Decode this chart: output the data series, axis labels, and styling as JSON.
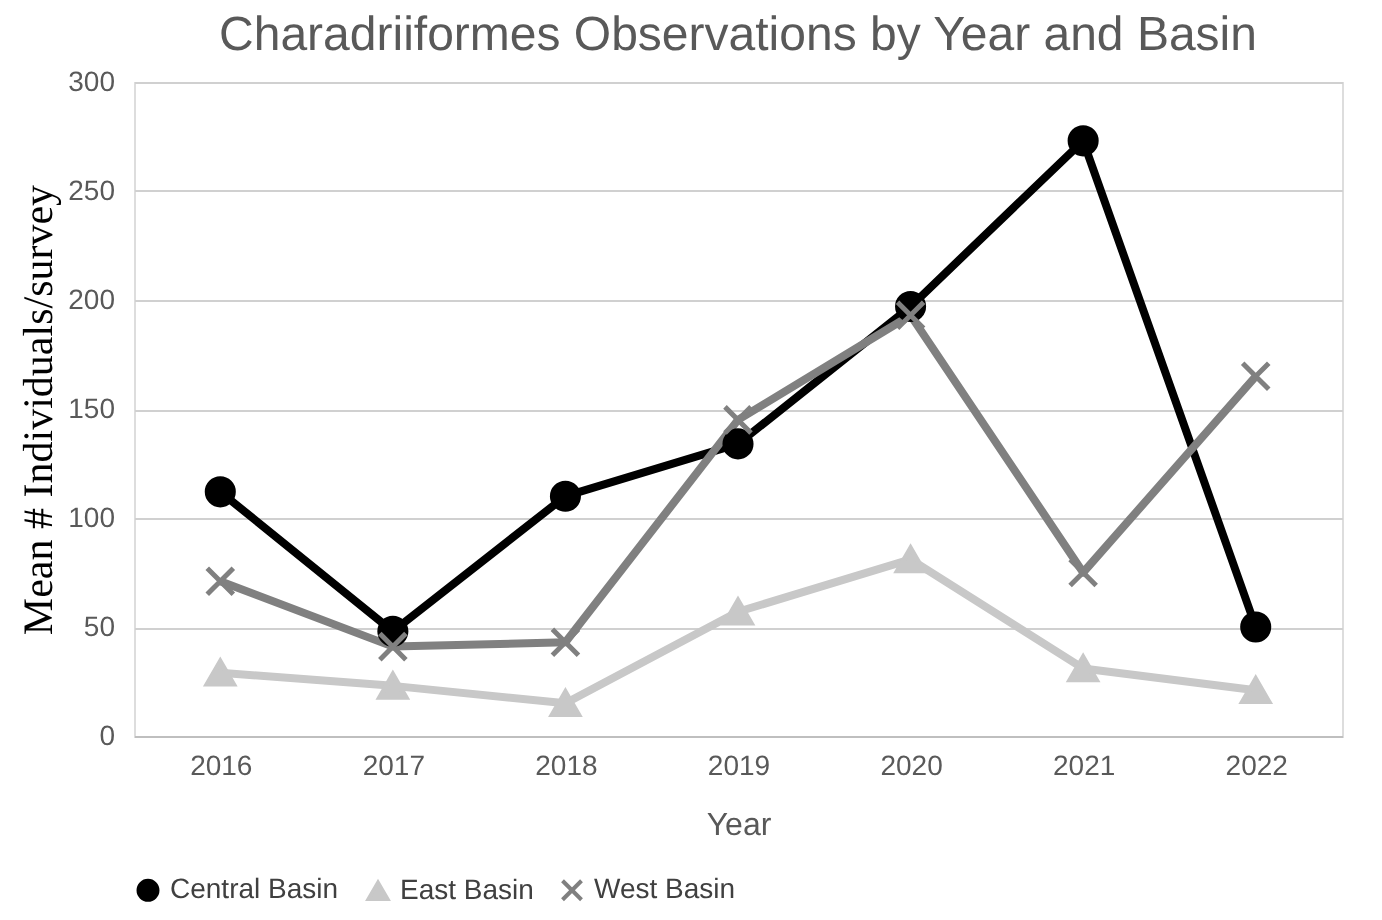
{
  "chart_data": {
    "type": "line",
    "title": "Charadriiformes Observations by Year and Basin",
    "xlabel": "Year",
    "ylabel": "Mean # Individuals/survey",
    "categories": [
      "2016",
      "2017",
      "2018",
      "2019",
      "2020",
      "2021",
      "2022"
    ],
    "series": [
      {
        "name": "Central Basin",
        "color": "#000000",
        "marker": "circle",
        "values": [
          112,
          48,
          110,
          134,
          197,
          273,
          50
        ]
      },
      {
        "name": "East Basin",
        "color": "#c8c8c8",
        "marker": "triangle",
        "values": [
          29,
          23,
          15,
          57,
          81,
          31,
          21
        ]
      },
      {
        "name": "West Basin",
        "color": "#808080",
        "marker": "cross",
        "values": [
          71,
          41,
          43,
          145,
          193,
          75,
          165
        ]
      }
    ],
    "ylim": [
      0,
      300
    ],
    "yticks": [
      0,
      50,
      100,
      150,
      200,
      250,
      300
    ],
    "grid": "y",
    "legend": "bottom",
    "line_style": "solid"
  }
}
